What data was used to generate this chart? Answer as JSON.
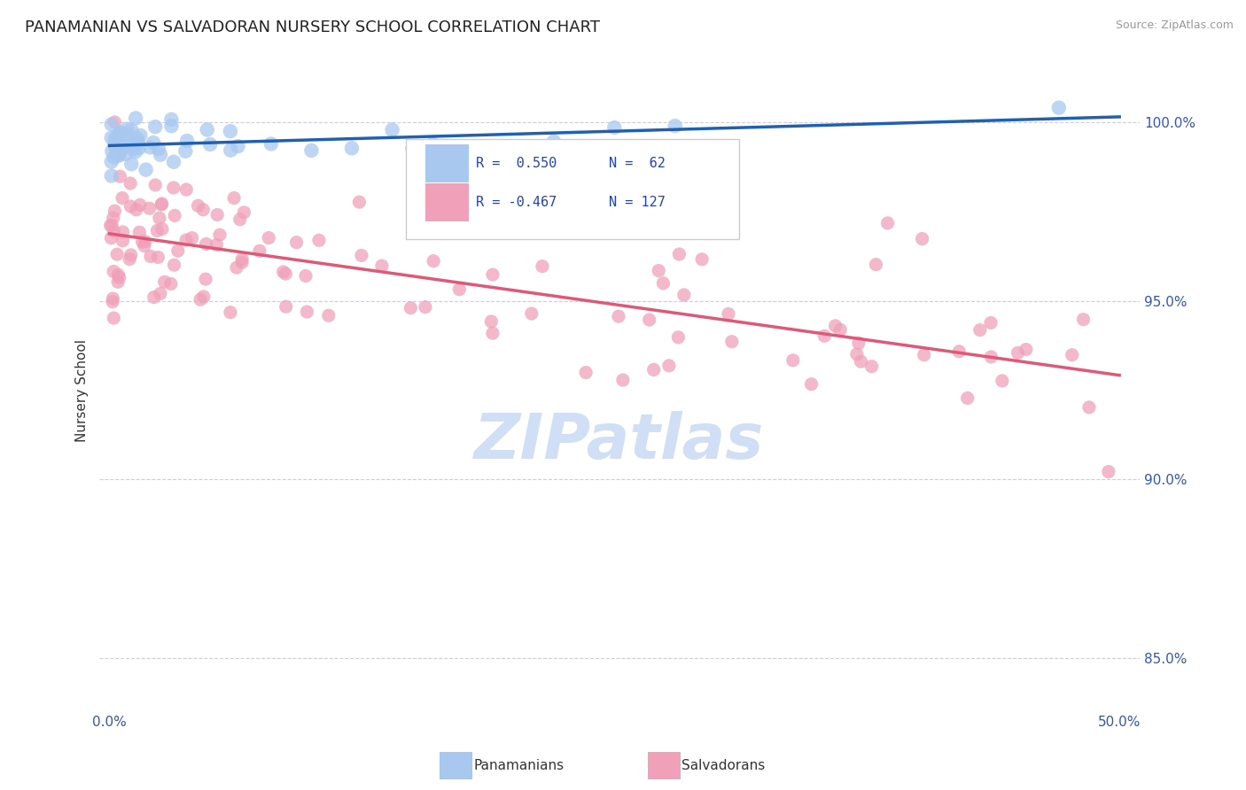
{
  "title": "PANAMANIAN VS SALVADORAN NURSERY SCHOOL CORRELATION CHART",
  "source": "Source: ZipAtlas.com",
  "ylabel": "Nursery School",
  "xlim": [
    -0.5,
    51.0
  ],
  "ylim": [
    83.5,
    101.5
  ],
  "ytick_positions": [
    85.0,
    90.0,
    95.0,
    100.0
  ],
  "ytick_labels": [
    "85.0%",
    "90.0%",
    "95.0%",
    "100.0%"
  ],
  "xtick_positions": [
    0.0,
    10.0,
    20.0,
    30.0,
    40.0,
    50.0
  ],
  "xtick_labels": [
    "0.0%",
    "",
    "",
    "",
    "",
    "50.0%"
  ],
  "blue_color": "#A8C8F0",
  "pink_color": "#F0A0B8",
  "blue_line_color": "#2060B0",
  "pink_line_color": "#E05878",
  "watermark_color": "#D0DFF5",
  "legend_r_blue": "R =  0.550",
  "legend_n_blue": "N =  62",
  "legend_r_pink": "R = -0.467",
  "legend_n_pink": "N = 127"
}
